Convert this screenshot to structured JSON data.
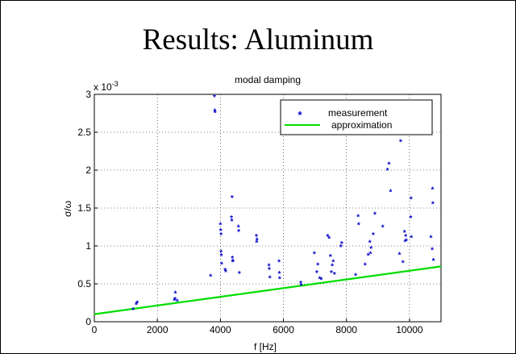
{
  "slide": {
    "title": "Results: Aluminum"
  },
  "chart_data": {
    "type": "scatter",
    "title": "modal damping",
    "xlabel": "f [Hz]",
    "ylabel": "σ/ω",
    "y_exponent": "x 10",
    "y_exponent_power": "-3",
    "xlim": [
      0,
      11000
    ],
    "ylim": [
      0,
      3
    ],
    "xticks": [
      0,
      2000,
      4000,
      6000,
      8000,
      10000
    ],
    "xtick_labels": [
      "0",
      "2000",
      "4000",
      "6000",
      "8000",
      "10000"
    ],
    "yticks": [
      0,
      0.5,
      1,
      1.5,
      2,
      2.5,
      3
    ],
    "ytick_labels": [
      "0",
      "0.5",
      "1",
      "1.5",
      "2",
      "2.5",
      "3"
    ],
    "grid": true,
    "legend_position": "top-right",
    "colors": {
      "measurement": "#0000cc",
      "approximation": "#00dd00"
    },
    "series": [
      {
        "name": "measurement",
        "marker": "*",
        "points": [
          [
            1230,
            0.16
          ],
          [
            1330,
            0.23
          ],
          [
            1360,
            0.25
          ],
          [
            2540,
            0.28
          ],
          [
            2560,
            0.3
          ],
          [
            2570,
            0.38
          ],
          [
            2630,
            0.27
          ],
          [
            3690,
            0.6
          ],
          [
            3810,
            2.97
          ],
          [
            3820,
            2.78
          ],
          [
            3830,
            2.76
          ],
          [
            4000,
            1.28
          ],
          [
            4010,
            1.2
          ],
          [
            4020,
            1.15
          ],
          [
            4020,
            0.92
          ],
          [
            4030,
            0.87
          ],
          [
            4040,
            0.76
          ],
          [
            4150,
            0.68
          ],
          [
            4170,
            0.66
          ],
          [
            4350,
            1.37
          ],
          [
            4360,
            1.33
          ],
          [
            4370,
            1.64
          ],
          [
            4380,
            0.84
          ],
          [
            4390,
            0.8
          ],
          [
            4400,
            0.79
          ],
          [
            4570,
            1.25
          ],
          [
            4580,
            1.19
          ],
          [
            4600,
            0.64
          ],
          [
            5140,
            1.13
          ],
          [
            5150,
            1.05
          ],
          [
            5160,
            1.08
          ],
          [
            5540,
            0.74
          ],
          [
            5550,
            0.69
          ],
          [
            5570,
            0.58
          ],
          [
            5860,
            0.79
          ],
          [
            5870,
            0.64
          ],
          [
            5880,
            0.57
          ],
          [
            6550,
            0.51
          ],
          [
            6560,
            0.48
          ],
          [
            6980,
            0.9
          ],
          [
            7060,
            0.65
          ],
          [
            7090,
            0.75
          ],
          [
            7150,
            0.57
          ],
          [
            7200,
            0.56
          ],
          [
            7400,
            1.13
          ],
          [
            7450,
            1.1
          ],
          [
            7490,
            0.86
          ],
          [
            7520,
            0.65
          ],
          [
            7550,
            0.74
          ],
          [
            7580,
            0.79
          ],
          [
            7620,
            0.63
          ],
          [
            7820,
            0.99
          ],
          [
            7850,
            1.03
          ],
          [
            8290,
            0.61
          ],
          [
            8370,
            1.39
          ],
          [
            8390,
            1.28
          ],
          [
            8590,
            0.75
          ],
          [
            8690,
            0.88
          ],
          [
            8740,
            1.05
          ],
          [
            8760,
            0.9
          ],
          [
            8780,
            0.97
          ],
          [
            8850,
            1.15
          ],
          [
            8900,
            1.42
          ],
          [
            9150,
            1.25
          ],
          [
            9300,
            2.0
          ],
          [
            9350,
            2.08
          ],
          [
            9400,
            1.72
          ],
          [
            9680,
            0.89
          ],
          [
            9720,
            2.38
          ],
          [
            9790,
            0.78
          ],
          [
            9840,
            1.18
          ],
          [
            9860,
            1.06
          ],
          [
            9880,
            1.13
          ],
          [
            9900,
            1.07
          ],
          [
            10040,
            1.37
          ],
          [
            10050,
            1.62
          ],
          [
            10060,
            1.11
          ],
          [
            10680,
            1.11
          ],
          [
            10720,
            0.95
          ],
          [
            10730,
            1.75
          ],
          [
            10740,
            1.56
          ],
          [
            10760,
            0.81
          ]
        ]
      },
      {
        "name": "approximation",
        "type": "line",
        "x": [
          0,
          11000
        ],
        "y": [
          0.1,
          0.73
        ]
      }
    ]
  }
}
